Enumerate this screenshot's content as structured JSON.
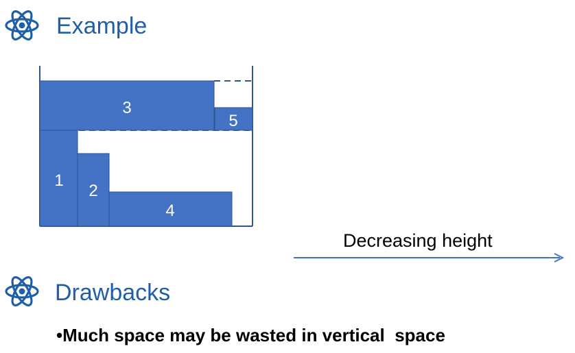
{
  "headings": {
    "example": "Example",
    "drawbacks": "Drawbacks"
  },
  "icons": {
    "bullet_icon": "atom-icon"
  },
  "colors": {
    "heading": "#1f5fa8",
    "block_fill": "#4472c4",
    "block_stroke": "#2f528f",
    "bin_line": "#2f5597",
    "arrow": "#4472c4"
  },
  "diagram": {
    "blocks": [
      {
        "label": "3"
      },
      {
        "label": "5"
      },
      {
        "label": "1"
      },
      {
        "label": "2"
      },
      {
        "label": "4"
      }
    ]
  },
  "arrow": {
    "label": "Decreasing height"
  },
  "drawbacks_points": [
    "•Much space may be wasted in vertical  space"
  ]
}
